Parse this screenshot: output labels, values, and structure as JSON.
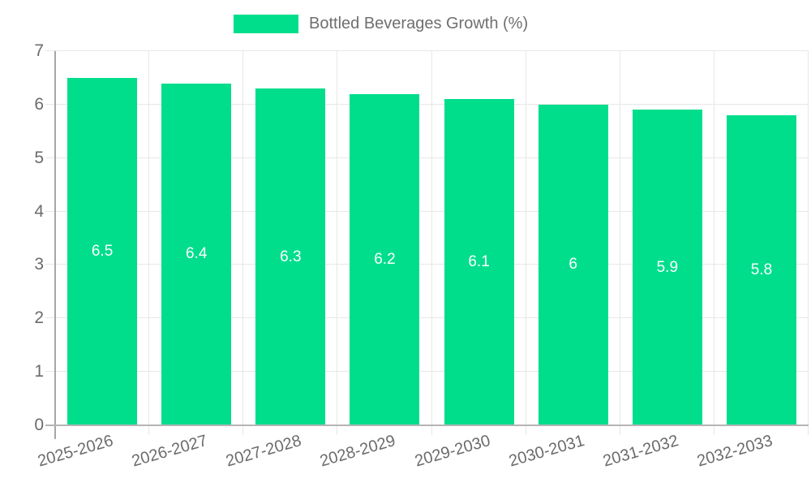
{
  "colors": {
    "bar": "#00de8c",
    "bar_label_text": "#ffffff",
    "grid": "#e7e7e7",
    "axis_line": "#a6a6a6",
    "bottom_axis_line": "#b5b5b5",
    "tick_text": "#6b6b6b",
    "legend_text": "#6f6f6f"
  },
  "chart_data": {
    "type": "bar",
    "title": "",
    "legend": "Bottled Beverages Growth (%)",
    "legend_position": "top",
    "categories": [
      "2025-2026",
      "2026-2027",
      "2027-2028",
      "2028-2029",
      "2029-2030",
      "2030-2031",
      "2031-2032",
      "2032-2033"
    ],
    "values": [
      6.5,
      6.4,
      6.3,
      6.2,
      6.1,
      6,
      5.9,
      5.8
    ],
    "bar_value_labels": [
      "6.5",
      "6.4",
      "6.3",
      "6.2",
      "6.1",
      "6",
      "5.9",
      "5.8"
    ],
    "xlabel": "",
    "ylabel": "",
    "ylim": [
      0,
      7
    ],
    "yticks": [
      "0",
      "1",
      "2",
      "3",
      "4",
      "5",
      "6",
      "7"
    ],
    "grid": true
  }
}
